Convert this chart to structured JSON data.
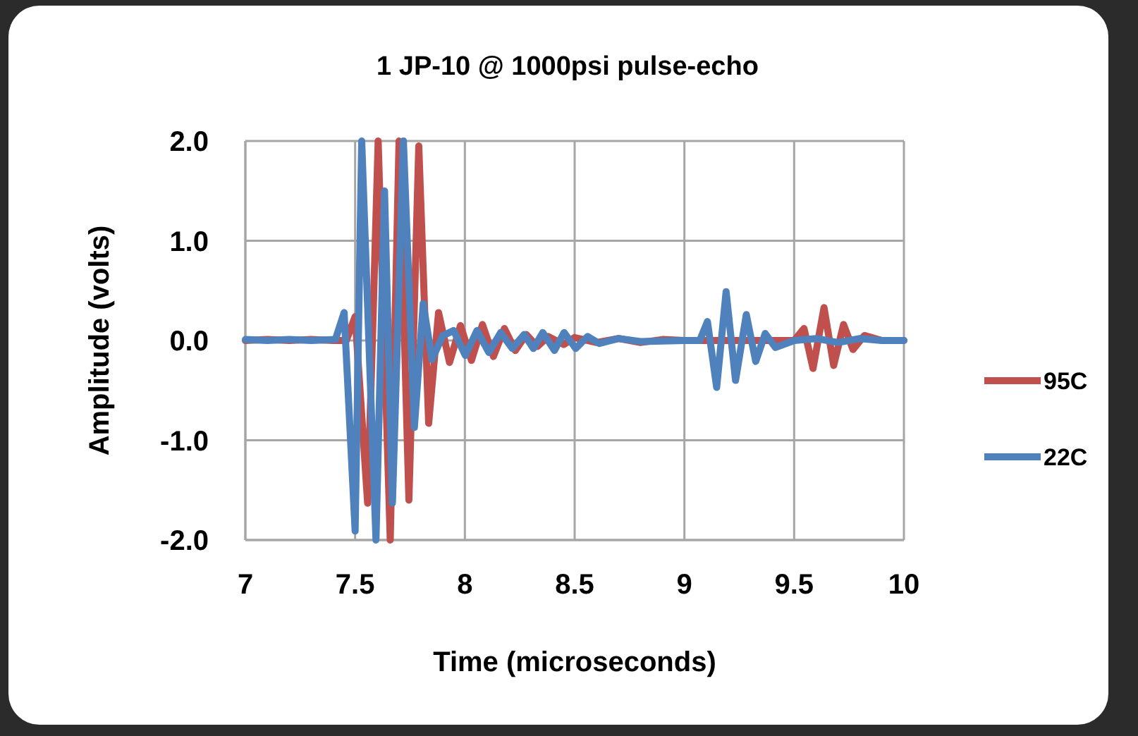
{
  "chart_data": {
    "type": "line",
    "title": "1 JP-10 @ 1000psi pulse-echo",
    "xlabel": "Time (microseconds)",
    "ylabel": "Amplitude (volts)",
    "xlim": [
      7,
      10
    ],
    "xticks": [
      7,
      7.5,
      8,
      8.5,
      9,
      9.5,
      10
    ],
    "ylim": [
      -2,
      2
    ],
    "yticks": [
      {
        "value": 2,
        "label": "2.0"
      },
      {
        "value": 1,
        "label": "1.0"
      },
      {
        "value": 0,
        "label": "0.0"
      },
      {
        "value": -1,
        "label": "-1.0"
      },
      {
        "value": -2,
        "label": "-2.0"
      }
    ],
    "grid": true,
    "legend": "right",
    "marker": "none",
    "line_style": "solid",
    "series": [
      {
        "name": "95C",
        "color": "#c0504d",
        "x": [
          7,
          7.1,
          7.2,
          7.3,
          7.4,
          7.46,
          7.5,
          7.557,
          7.605,
          7.66,
          7.7,
          7.745,
          7.79,
          7.835,
          7.88,
          7.93,
          7.98,
          8.03,
          8.08,
          8.13,
          8.18,
          8.23,
          8.28,
          8.33,
          8.38,
          8.45,
          8.5,
          8.6,
          8.7,
          8.8,
          8.9,
          9,
          9.2,
          9.4,
          9.5,
          9.545,
          9.586,
          9.636,
          9.68,
          9.725,
          9.768,
          9.82,
          9.9,
          10
        ],
        "values": [
          0,
          0.01,
          0,
          0.01,
          0,
          0,
          0.24,
          -1.63,
          2,
          -2,
          2,
          -1.6,
          1.95,
          -0.83,
          0.28,
          -0.22,
          0.15,
          -0.2,
          0.16,
          -0.16,
          0.12,
          -0.1,
          0.06,
          -0.06,
          0.04,
          -0.04,
          0.03,
          -0.02,
          0.02,
          -0.02,
          0.01,
          0,
          0,
          0,
          0,
          0.12,
          -0.28,
          0.33,
          -0.25,
          0.16,
          -0.09,
          0.05,
          0,
          0
        ]
      },
      {
        "name": "22C",
        "color": "#4f81bd",
        "x": [
          7,
          7.1,
          7.2,
          7.3,
          7.41,
          7.45,
          7.5,
          7.53,
          7.595,
          7.634,
          7.67,
          7.72,
          7.77,
          7.81,
          7.85,
          7.9,
          7.949,
          8.002,
          8.055,
          8.109,
          8.163,
          8.216,
          8.27,
          8.312,
          8.355,
          8.408,
          8.452,
          8.505,
          8.559,
          8.612,
          8.7,
          8.8,
          9,
          9.07,
          9.105,
          9.147,
          9.19,
          9.233,
          9.282,
          9.325,
          9.368,
          9.415,
          9.5,
          9.6,
          9.7,
          9.8,
          9.9,
          10
        ],
        "values": [
          0.01,
          0,
          0.01,
          0,
          0.01,
          0.28,
          -1.91,
          2,
          -2,
          1.5,
          -1.63,
          2,
          -0.87,
          0.37,
          -0.19,
          0.05,
          0.1,
          -0.15,
          0.1,
          -0.12,
          0.08,
          -0.08,
          0.06,
          -0.08,
          0.08,
          -0.1,
          0.08,
          -0.08,
          0.04,
          -0.03,
          0.02,
          -0.01,
          0,
          0,
          0.19,
          -0.47,
          0.49,
          -0.4,
          0.26,
          -0.21,
          0.07,
          -0.07,
          0,
          0.02,
          -0.02,
          0.02,
          0,
          0
        ]
      }
    ]
  }
}
